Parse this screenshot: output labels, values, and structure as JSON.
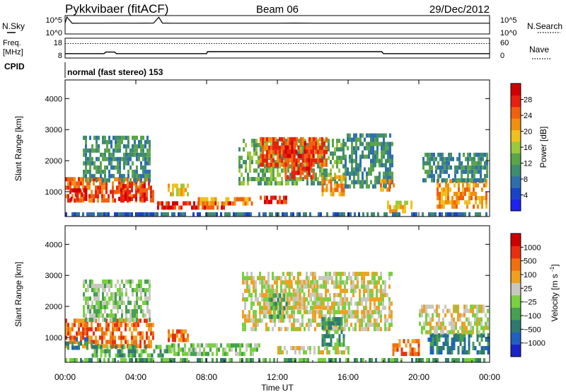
{
  "header": {
    "station": "Pykkvibaer (fitACF)",
    "beam": "Beam 06",
    "date": "29/Dec/2012"
  },
  "labels": {
    "nsky": "N.Sky",
    "nsky_ticks": [
      "10^5",
      "10^0"
    ],
    "nsearch": "N.Search",
    "nsearch_ticks": [
      "10^5",
      "10^0"
    ],
    "freq": "Freq.",
    "freq_unit": "[MHz]",
    "freq_ticks": [
      "18",
      "8"
    ],
    "nave": "Nave",
    "nave_ticks": [
      "60",
      "0"
    ],
    "cpid": "CPID",
    "cpid_text": "normal (fast stereo) 153"
  },
  "colors": {
    "power": [
      "#1e22f0",
      "#1a44c8",
      "#2f6fae",
      "#3f8c6e",
      "#5aa44a",
      "#9cc83c",
      "#f0c020",
      "#f09010",
      "#f06010",
      "#e82010",
      "#d00000"
    ],
    "velocity": [
      "#1a24c8",
      "#2060c0",
      "#2f7a70",
      "#46a050",
      "#7ad040",
      "#c8c8c0",
      "#f0a020",
      "#f07010",
      "#e83010",
      "#d00000"
    ]
  },
  "chart_data": [
    {
      "type": "line",
      "name": "nsky-search-noise",
      "ylabel": "N.Sky",
      "ylabel_right": "N.Search",
      "x_range_hours": [
        0,
        24
      ],
      "series": [
        {
          "name": "N.Sky",
          "x": [
            0,
            0.1,
            0.4,
            1,
            2,
            3,
            4,
            5,
            5.3,
            5.5,
            6,
            8,
            10,
            12,
            13,
            14,
            16,
            18,
            20,
            22,
            24
          ],
          "values": [
            1,
            100000,
            1.5,
            2,
            2,
            2.5,
            2,
            3,
            80000,
            3,
            2,
            2,
            2,
            2,
            3,
            2,
            2,
            2,
            2,
            2,
            2
          ]
        }
      ]
    },
    {
      "type": "line",
      "name": "frequency-nave",
      "ylabel": "Freq. [MHz]",
      "ylabel_right": "Nave",
      "x_range_hours": [
        0,
        24
      ],
      "series": [
        {
          "name": "Freq.",
          "x": [
            0,
            2.2,
            2.3,
            2.8,
            2.9,
            8.0,
            8.05,
            17.9,
            18.0,
            24
          ],
          "values": [
            10.2,
            10.2,
            11.0,
            11.0,
            10.2,
            10.2,
            11.2,
            11.2,
            10.2,
            10.2
          ]
        },
        {
          "name": "Nave",
          "x": [
            0,
            24
          ],
          "values": [
            44,
            44
          ]
        }
      ]
    },
    {
      "type": "heatmap",
      "name": "power",
      "ylabel": "Slant Range [km]",
      "colorbar_label": "Power [dB]",
      "colorbar_ticks": [
        "28",
        "24",
        "20",
        "16",
        "12",
        "8",
        "4"
      ],
      "colorbar_values": [
        28,
        24,
        20,
        16,
        12,
        8,
        4
      ],
      "colorbar_range": [
        0,
        32
      ],
      "y_ticks": [
        "1000",
        "2000",
        "3000",
        "4000"
      ],
      "y_values": [
        1000,
        2000,
        3000,
        4000
      ],
      "y_range": [
        200,
        4600
      ],
      "x_range_hours": [
        0,
        24
      ],
      "regions": [
        {
          "t0": 0.0,
          "t1": 5.0,
          "r0": 650,
          "r1": 1400,
          "level": 8
        },
        {
          "t0": 0.3,
          "t1": 1.2,
          "r0": 700,
          "r1": 1100,
          "level": 10
        },
        {
          "t0": 3.0,
          "t1": 4.6,
          "r0": 700,
          "r1": 1200,
          "level": 9
        },
        {
          "t0": 1.0,
          "t1": 4.8,
          "r0": 1300,
          "r1": 2800,
          "level": 3
        },
        {
          "t0": 5.8,
          "t1": 7.0,
          "r0": 850,
          "r1": 1150,
          "level": 6
        },
        {
          "t0": 5.2,
          "t1": 9.5,
          "r0": 420,
          "r1": 620,
          "level": 9
        },
        {
          "t0": 7.5,
          "t1": 10.5,
          "r0": 550,
          "r1": 700,
          "level": 7
        },
        {
          "t0": 9.8,
          "t1": 15.8,
          "r0": 1200,
          "r1": 2700,
          "level": 4
        },
        {
          "t0": 11.0,
          "t1": 14.8,
          "r0": 1800,
          "r1": 2700,
          "level": 8
        },
        {
          "t0": 12.3,
          "t1": 14.0,
          "r0": 1400,
          "r1": 2500,
          "level": 9
        },
        {
          "t0": 14.5,
          "t1": 15.8,
          "r0": 850,
          "r1": 1500,
          "level": 7
        },
        {
          "t0": 11.0,
          "t1": 12.5,
          "r0": 600,
          "r1": 760,
          "level": 9
        },
        {
          "t0": 15.8,
          "t1": 18.5,
          "r0": 1100,
          "r1": 2800,
          "level": 3
        },
        {
          "t0": 17.8,
          "t1": 18.6,
          "r0": 1000,
          "r1": 1300,
          "level": 7
        },
        {
          "t0": 18.2,
          "t1": 19.6,
          "r0": 300,
          "r1": 700,
          "level": 6
        },
        {
          "t0": 21.0,
          "t1": 24.0,
          "r0": 450,
          "r1": 1300,
          "level": 7
        },
        {
          "t0": 20.2,
          "t1": 24.0,
          "r0": 1300,
          "r1": 2200,
          "level": 3
        },
        {
          "t0": 0.0,
          "t1": 24.0,
          "r0": 200,
          "r1": 330,
          "level": 2
        }
      ]
    },
    {
      "type": "heatmap",
      "name": "velocity",
      "ylabel": "Slant Range [km]",
      "colorbar_label": "Velocity [m s^-1]",
      "colorbar_ticks": [
        "1000",
        "500",
        "100",
        "25",
        "−25",
        "−100",
        "−500",
        "−1000"
      ],
      "colorbar_values": [
        1000,
        500,
        100,
        25,
        -25,
        -100,
        -500,
        -1000
      ],
      "y_ticks": [
        "1000",
        "2000",
        "3000",
        "4000"
      ],
      "y_values": [
        1000,
        2000,
        3000,
        4000
      ],
      "y_range": [
        200,
        4600
      ],
      "x_range_hours": [
        0,
        24
      ],
      "regions": [
        {
          "t0": 0.0,
          "t1": 5.0,
          "r0": 650,
          "r1": 1500,
          "level": 7
        },
        {
          "t0": 1.0,
          "t1": 4.8,
          "r0": 1500,
          "r1": 2800,
          "level": 4
        },
        {
          "t0": 0.0,
          "t1": 1.5,
          "r0": 600,
          "r1": 1000,
          "level": 2
        },
        {
          "t0": 5.8,
          "t1": 7.0,
          "r0": 850,
          "r1": 1250,
          "level": 7
        },
        {
          "t0": 1.5,
          "t1": 6.0,
          "r0": 350,
          "r1": 650,
          "level": 3
        },
        {
          "t0": 6.0,
          "t1": 11.0,
          "r0": 400,
          "r1": 700,
          "level": 4
        },
        {
          "t0": 10.0,
          "t1": 18.5,
          "r0": 1200,
          "r1": 3000,
          "level": 5
        },
        {
          "t0": 12.5,
          "t1": 14.5,
          "r0": 1900,
          "r1": 2800,
          "level": 5
        },
        {
          "t0": 14.5,
          "t1": 15.8,
          "r0": 700,
          "r1": 1600,
          "level": 3
        },
        {
          "t0": 11.5,
          "t1": 12.5,
          "r0": 1600,
          "r1": 2400,
          "level": 3
        },
        {
          "t0": 12.0,
          "t1": 16.0,
          "r0": 450,
          "r1": 650,
          "level": 5
        },
        {
          "t0": 18.5,
          "t1": 20.0,
          "r0": 400,
          "r1": 900,
          "level": 7
        },
        {
          "t0": 20.5,
          "t1": 24.0,
          "r0": 450,
          "r1": 1100,
          "level": 2
        },
        {
          "t0": 20.0,
          "t1": 24.0,
          "r0": 1100,
          "r1": 2000,
          "level": 5
        },
        {
          "t0": 0.0,
          "t1": 24.0,
          "r0": 200,
          "r1": 330,
          "level": 3
        }
      ]
    }
  ],
  "x_axis": {
    "ticks": [
      "00:00",
      "04:00",
      "08:00",
      "12:00",
      "16:00",
      "20:00",
      "00:00"
    ],
    "tick_hours": [
      0,
      4,
      8,
      12,
      16,
      20,
      24
    ],
    "label": "Time UT"
  }
}
